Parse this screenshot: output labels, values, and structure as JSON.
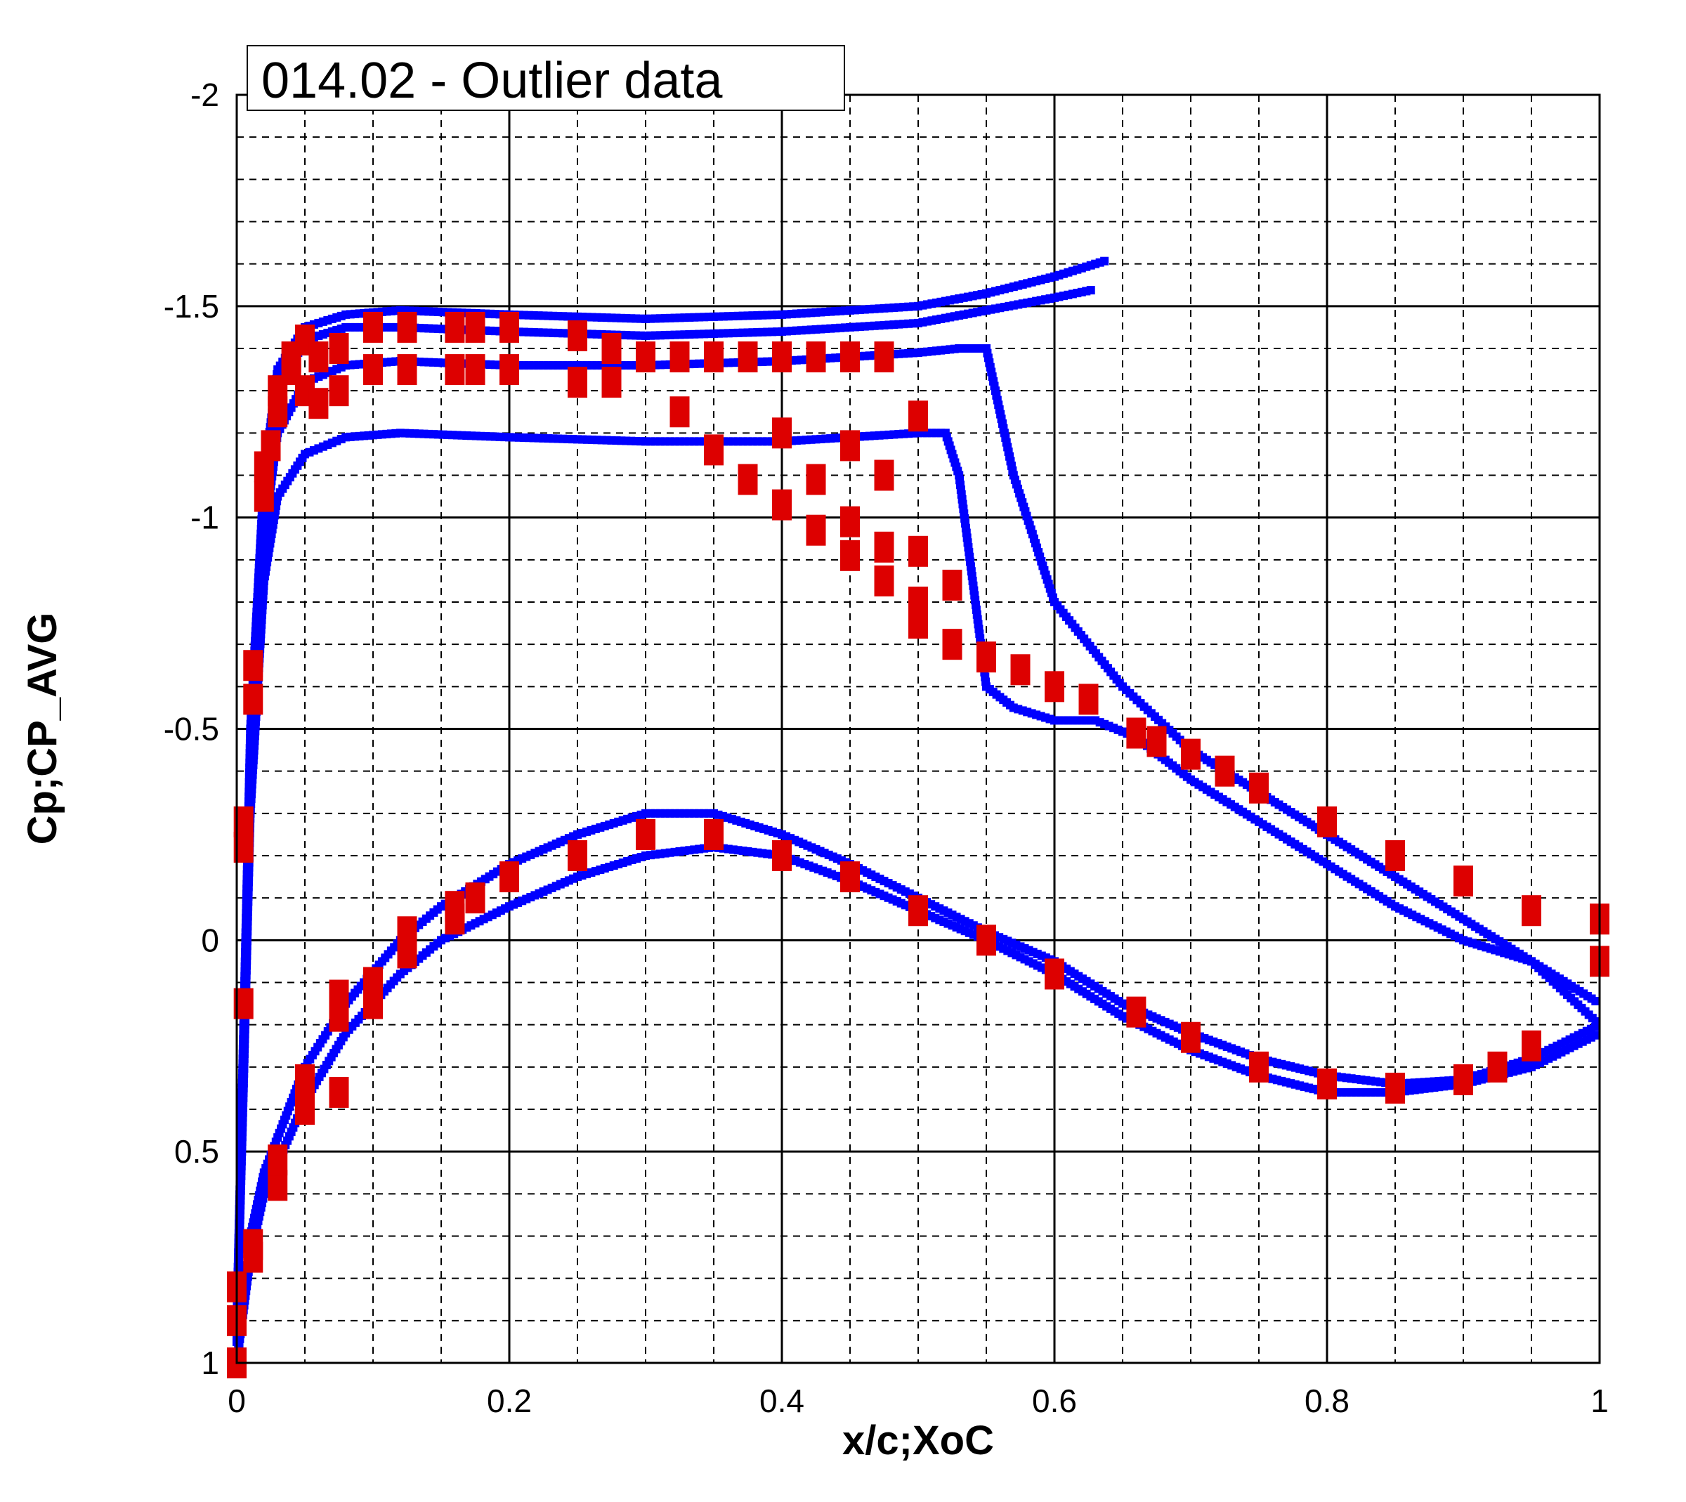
{
  "chart_data": {
    "type": "scatter",
    "title": "014.02 - Outlier data",
    "xlabel": "x/c;XoC",
    "ylabel": "Cp;CP_AVG",
    "xlim": [
      0,
      1
    ],
    "ylim": [
      1,
      -2
    ],
    "y_axis_inverted": true,
    "x_ticks": [
      0,
      0.2,
      0.4,
      0.6,
      0.8,
      1
    ],
    "x_tick_labels": [
      "0",
      "0.2",
      "0.4",
      "0.6",
      "0.8",
      "1"
    ],
    "y_ticks": [
      1,
      0.5,
      0,
      -0.5,
      -1,
      -1.5,
      -2
    ],
    "y_tick_labels": [
      "1",
      "0.5",
      "0",
      "-0.5",
      "-1",
      "-1.5",
      "-2"
    ],
    "x_minor_step": 0.05,
    "y_minor_step": 0.1,
    "grid": "major solid, minor dashed",
    "series": [
      {
        "marker": "small square",
        "color": "#0000ff",
        "curves": [
          {
            "x": [
              0,
              0.005,
              0.01,
              0.02,
              0.03,
              0.05,
              0.08,
              0.12,
              0.2,
              0.3,
              0.4,
              0.5,
              0.55,
              0.6,
              0.64
            ],
            "y": [
              0.9,
              0.2,
              -0.5,
              -1.1,
              -1.35,
              -1.45,
              -1.48,
              -1.49,
              -1.48,
              -1.47,
              -1.48,
              -1.5,
              -1.53,
              -1.57,
              -1.61
            ]
          },
          {
            "x": [
              0,
              0.005,
              0.01,
              0.02,
              0.03,
              0.05,
              0.08,
              0.12,
              0.2,
              0.3,
              0.4,
              0.5,
              0.55,
              0.6,
              0.63
            ],
            "y": [
              0.9,
              0.25,
              -0.45,
              -1.05,
              -1.3,
              -1.42,
              -1.45,
              -1.45,
              -1.44,
              -1.43,
              -1.44,
              -1.46,
              -1.49,
              -1.52,
              -1.54
            ]
          },
          {
            "x": [
              0,
              0.005,
              0.01,
              0.02,
              0.03,
              0.05,
              0.08,
              0.12,
              0.2,
              0.3,
              0.4,
              0.45,
              0.5,
              0.53,
              0.55,
              0.57,
              0.6,
              0.65,
              0.7,
              0.75,
              0.8,
              0.85,
              0.9,
              0.95,
              1
            ],
            "y": [
              0.95,
              0.3,
              -0.4,
              -0.95,
              -1.2,
              -1.32,
              -1.36,
              -1.37,
              -1.36,
              -1.36,
              -1.37,
              -1.38,
              -1.39,
              -1.4,
              -1.4,
              -1.1,
              -0.8,
              -0.6,
              -0.45,
              -0.35,
              -0.25,
              -0.15,
              -0.05,
              0.05,
              0.2
            ]
          },
          {
            "x": [
              0,
              0.005,
              0.01,
              0.02,
              0.03,
              0.05,
              0.08,
              0.12,
              0.2,
              0.3,
              0.4,
              0.45,
              0.5,
              0.52,
              0.53,
              0.54,
              0.55,
              0.57,
              0.6,
              0.63,
              0.66,
              0.7,
              0.75,
              0.8,
              0.85,
              0.9,
              0.95,
              1
            ],
            "y": [
              0.95,
              0.35,
              -0.3,
              -0.85,
              -1.05,
              -1.15,
              -1.19,
              -1.2,
              -1.19,
              -1.18,
              -1.18,
              -1.19,
              -1.2,
              -1.2,
              -1.1,
              -0.85,
              -0.6,
              -0.55,
              -0.52,
              -0.52,
              -0.48,
              -0.38,
              -0.28,
              -0.18,
              -0.08,
              0.0,
              0.05,
              0.15
            ]
          },
          {
            "x": [
              0,
              0.01,
              0.02,
              0.05,
              0.08,
              0.12,
              0.15,
              0.2,
              0.25,
              0.3,
              0.35,
              0.4,
              0.45,
              0.5,
              0.55,
              0.6,
              0.65,
              0.7,
              0.75,
              0.8,
              0.85,
              0.9,
              0.95,
              1
            ],
            "y": [
              1.0,
              0.7,
              0.55,
              0.3,
              0.15,
              0.0,
              -0.08,
              -0.18,
              -0.25,
              -0.3,
              -0.3,
              -0.25,
              -0.18,
              -0.1,
              -0.02,
              0.05,
              0.15,
              0.22,
              0.28,
              0.32,
              0.34,
              0.33,
              0.28,
              0.2
            ]
          },
          {
            "x": [
              0,
              0.01,
              0.02,
              0.05,
              0.08,
              0.12,
              0.15,
              0.2,
              0.25,
              0.3,
              0.35,
              0.4,
              0.45,
              0.5,
              0.55,
              0.6,
              0.65,
              0.7,
              0.75,
              0.8,
              0.85,
              0.9,
              0.95,
              1
            ],
            "y": [
              1.0,
              0.75,
              0.6,
              0.38,
              0.22,
              0.08,
              0.0,
              -0.08,
              -0.15,
              -0.2,
              -0.22,
              -0.2,
              -0.14,
              -0.07,
              0.0,
              0.08,
              0.18,
              0.26,
              0.32,
              0.36,
              0.36,
              0.34,
              0.3,
              0.22
            ]
          }
        ]
      },
      {
        "marker": "large rectangle",
        "color": "#dd0000",
        "points": [
          {
            "x": 0.0,
            "y": 1.0
          },
          {
            "x": 0.0,
            "y": 0.82
          },
          {
            "x": 0.0,
            "y": 0.9
          },
          {
            "x": 0.005,
            "y": 0.15
          },
          {
            "x": 0.005,
            "y": -0.22
          },
          {
            "x": 0.005,
            "y": -0.28
          },
          {
            "x": 0.012,
            "y": 0.72
          },
          {
            "x": 0.012,
            "y": 0.75
          },
          {
            "x": 0.012,
            "y": -0.57
          },
          {
            "x": 0.012,
            "y": -0.65
          },
          {
            "x": 0.02,
            "y": -1.05
          },
          {
            "x": 0.02,
            "y": -1.12
          },
          {
            "x": 0.025,
            "y": -1.17
          },
          {
            "x": 0.03,
            "y": -1.25
          },
          {
            "x": 0.03,
            "y": -1.3
          },
          {
            "x": 0.03,
            "y": 0.58
          },
          {
            "x": 0.03,
            "y": 0.52
          },
          {
            "x": 0.04,
            "y": -1.35
          },
          {
            "x": 0.04,
            "y": -1.38
          },
          {
            "x": 0.05,
            "y": -1.42
          },
          {
            "x": 0.05,
            "y": -1.3
          },
          {
            "x": 0.05,
            "y": 0.4
          },
          {
            "x": 0.05,
            "y": 0.33
          },
          {
            "x": 0.06,
            "y": -1.38
          },
          {
            "x": 0.06,
            "y": -1.27
          },
          {
            "x": 0.075,
            "y": -1.4
          },
          {
            "x": 0.075,
            "y": -1.3
          },
          {
            "x": 0.075,
            "y": 0.18
          },
          {
            "x": 0.075,
            "y": 0.13
          },
          {
            "x": 0.075,
            "y": 0.36
          },
          {
            "x": 0.1,
            "y": -1.45
          },
          {
            "x": 0.1,
            "y": -1.35
          },
          {
            "x": 0.1,
            "y": 0.15
          },
          {
            "x": 0.1,
            "y": 0.1
          },
          {
            "x": 0.125,
            "y": -1.45
          },
          {
            "x": 0.125,
            "y": -1.35
          },
          {
            "x": 0.125,
            "y": -0.02
          },
          {
            "x": 0.125,
            "y": 0.03
          },
          {
            "x": 0.16,
            "y": -1.45
          },
          {
            "x": 0.16,
            "y": -1.35
          },
          {
            "x": 0.16,
            "y": -0.08
          },
          {
            "x": 0.16,
            "y": -0.05
          },
          {
            "x": 0.175,
            "y": -1.45
          },
          {
            "x": 0.175,
            "y": -1.35
          },
          {
            "x": 0.175,
            "y": -0.1
          },
          {
            "x": 0.2,
            "y": -1.45
          },
          {
            "x": 0.2,
            "y": -1.35
          },
          {
            "x": 0.2,
            "y": -0.15
          },
          {
            "x": 0.25,
            "y": -1.43
          },
          {
            "x": 0.25,
            "y": -1.32
          },
          {
            "x": 0.25,
            "y": -0.2
          },
          {
            "x": 0.275,
            "y": -1.4
          },
          {
            "x": 0.275,
            "y": -1.32
          },
          {
            "x": 0.3,
            "y": -1.38
          },
          {
            "x": 0.3,
            "y": -0.25
          },
          {
            "x": 0.325,
            "y": -1.38
          },
          {
            "x": 0.325,
            "y": -1.25
          },
          {
            "x": 0.35,
            "y": -1.38
          },
          {
            "x": 0.35,
            "y": -1.16
          },
          {
            "x": 0.35,
            "y": -0.25
          },
          {
            "x": 0.375,
            "y": -1.38
          },
          {
            "x": 0.375,
            "y": -1.09
          },
          {
            "x": 0.4,
            "y": -1.38
          },
          {
            "x": 0.4,
            "y": -1.2
          },
          {
            "x": 0.4,
            "y": -1.03
          },
          {
            "x": 0.4,
            "y": -0.2
          },
          {
            "x": 0.425,
            "y": -1.38
          },
          {
            "x": 0.425,
            "y": -1.09
          },
          {
            "x": 0.425,
            "y": -0.97
          },
          {
            "x": 0.45,
            "y": -1.38
          },
          {
            "x": 0.45,
            "y": -1.17
          },
          {
            "x": 0.45,
            "y": -0.99
          },
          {
            "x": 0.45,
            "y": -0.91
          },
          {
            "x": 0.45,
            "y": -0.15
          },
          {
            "x": 0.475,
            "y": -1.38
          },
          {
            "x": 0.475,
            "y": -1.1
          },
          {
            "x": 0.475,
            "y": -0.93
          },
          {
            "x": 0.475,
            "y": -0.85
          },
          {
            "x": 0.5,
            "y": -1.24
          },
          {
            "x": 0.5,
            "y": -0.92
          },
          {
            "x": 0.5,
            "y": -0.8
          },
          {
            "x": 0.5,
            "y": -0.75
          },
          {
            "x": 0.5,
            "y": -0.07
          },
          {
            "x": 0.525,
            "y": -0.84
          },
          {
            "x": 0.525,
            "y": -0.7
          },
          {
            "x": 0.55,
            "y": -0.67
          },
          {
            "x": 0.55,
            "y": 0.0
          },
          {
            "x": 0.575,
            "y": -0.64
          },
          {
            "x": 0.6,
            "y": -0.6
          },
          {
            "x": 0.6,
            "y": 0.08
          },
          {
            "x": 0.625,
            "y": -0.57
          },
          {
            "x": 0.66,
            "y": -0.49
          },
          {
            "x": 0.66,
            "y": 0.17
          },
          {
            "x": 0.675,
            "y": -0.47
          },
          {
            "x": 0.7,
            "y": -0.44
          },
          {
            "x": 0.7,
            "y": 0.23
          },
          {
            "x": 0.725,
            "y": -0.4
          },
          {
            "x": 0.75,
            "y": -0.36
          },
          {
            "x": 0.75,
            "y": 0.3
          },
          {
            "x": 0.8,
            "y": -0.28
          },
          {
            "x": 0.8,
            "y": 0.34
          },
          {
            "x": 0.85,
            "y": -0.2
          },
          {
            "x": 0.85,
            "y": 0.35
          },
          {
            "x": 0.9,
            "y": -0.14
          },
          {
            "x": 0.9,
            "y": 0.33
          },
          {
            "x": 0.925,
            "y": 0.3
          },
          {
            "x": 0.95,
            "y": -0.07
          },
          {
            "x": 0.95,
            "y": 0.25
          },
          {
            "x": 1.0,
            "y": -0.05
          },
          {
            "x": 1.0,
            "y": 0.05
          }
        ]
      }
    ]
  }
}
